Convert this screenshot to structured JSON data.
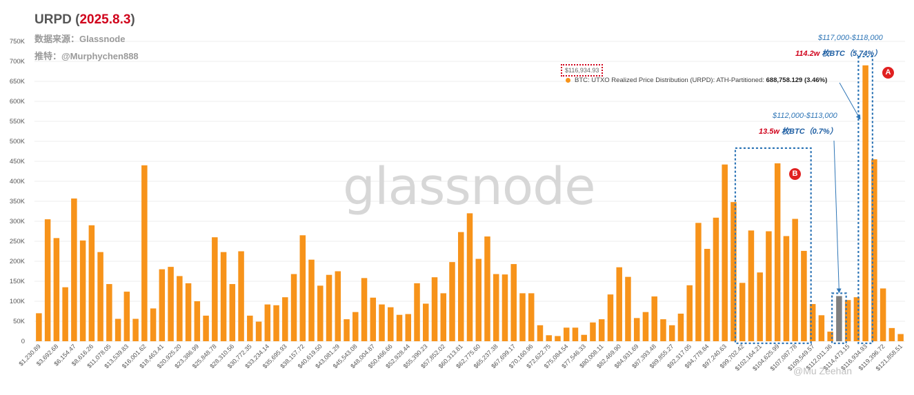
{
  "title": {
    "label": "URPD",
    "date": "2025.8.3",
    "open_paren": "(",
    "close_paren": ")"
  },
  "source_line": "数据来源：Glassnode",
  "author_line": "推特：@Murphychen888",
  "watermark": "glassnode",
  "tooltip_price": "$116,934.93",
  "legend": {
    "text": "BTC: UTXO Realized Price Distribution (URPD): ATH-Partitioned: ",
    "value": "688,758.129 (3.46%)"
  },
  "annotations": {
    "a_range": "$117,000-$118,000",
    "a_amount_w": "114.2w",
    "a_amount_rest": " 枚BTC（5.74%）",
    "a_badge": "A",
    "b_badge": "B",
    "c_range": "$112,000-$113,000",
    "c_amount_w": "13.5w",
    "c_amount_rest": " 枚BTC（0.7%）"
  },
  "footer_mark": "@Mu Zeehan",
  "colors": {
    "bar": "#f7931a",
    "highlight_bar": "#7f7f7f",
    "box": "#2e75b6",
    "accent_red": "#d0021b"
  },
  "chart_data": {
    "type": "bar",
    "title": "URPD (2025.8.3)",
    "xlabel": "",
    "ylabel": "",
    "ylim": [
      0,
      750000
    ],
    "yticks": [
      0,
      50000,
      100000,
      150000,
      200000,
      250000,
      300000,
      350000,
      400000,
      450000,
      500000,
      550000,
      600000,
      650000,
      700000,
      750000
    ],
    "ytick_labels": [
      "0",
      "50K",
      "100K",
      "150K",
      "200K",
      "250K",
      "300K",
      "350K",
      "400K",
      "450K",
      "500K",
      "550K",
      "600K",
      "650K",
      "700K",
      "750K"
    ],
    "xtick_labels": [
      "$1,230.89",
      "$3,692.68",
      "$6,154.47",
      "$8,616.26",
      "$11,078.05",
      "$13,539.83",
      "$16,001.62",
      "$18,463.41",
      "$20,925.20",
      "$23,386.99",
      "$25,848.78",
      "$28,310.56",
      "$30,772.35",
      "$33,234.14",
      "$35,695.93",
      "$38,157.72",
      "$40,619.50",
      "$43,081.29",
      "$45,543.08",
      "$48,004.87",
      "$50,466.66",
      "$52,928.44",
      "$55,390.23",
      "$57,852.02",
      "$60,313.81",
      "$62,775.60",
      "$65,237.38",
      "$67,699.17",
      "$70,160.96",
      "$72,622.75",
      "$75,084.54",
      "$77,546.33",
      "$80,008.11",
      "$82,469.90",
      "$84,931.69",
      "$87,393.48",
      "$89,855.27",
      "$92,317.05",
      "$94,778.84",
      "$97,240.63",
      "$99,702.42",
      "$102,164.21",
      "$104,625.99",
      "$107,087.78",
      "$109,549.57",
      "$112,011.36",
      "$114,473.15",
      "$116,934.93",
      "$119,396.72",
      "$121,858.51"
    ],
    "values": [
      70000,
      305000,
      258000,
      135000,
      357000,
      252000,
      290000,
      223000,
      143000,
      56000,
      124000,
      56000,
      440000,
      82000,
      180000,
      186000,
      163000,
      145000,
      100000,
      64000,
      260000,
      223000,
      143000,
      225000,
      64000,
      49000,
      92000,
      90000,
      110000,
      168000,
      265000,
      204000,
      139000,
      166000,
      175000,
      55000,
      73000,
      158000,
      109000,
      92000,
      85000,
      66000,
      68000,
      145000,
      94000,
      160000,
      120000,
      198000,
      273000,
      320000,
      206000,
      262000,
      168000,
      167000,
      193000,
      120000,
      120000,
      40000,
      15000,
      13000,
      34000,
      34000,
      16000,
      47000,
      55000,
      117000,
      185000,
      161000,
      58000,
      73000,
      112000,
      55000,
      40000,
      69000,
      140000,
      296000,
      231000,
      309000,
      442000,
      348000,
      146000,
      277000,
      172000,
      275000,
      445000,
      263000,
      306000,
      226000,
      93000,
      65000,
      24000,
      113000,
      103000,
      110000,
      690000,
      455000,
      132000,
      33000,
      18000
    ],
    "highlight_index": 91,
    "legend": [
      "BTC: UTXO Realized Price Distribution (URPD): ATH-Partitioned"
    ]
  }
}
